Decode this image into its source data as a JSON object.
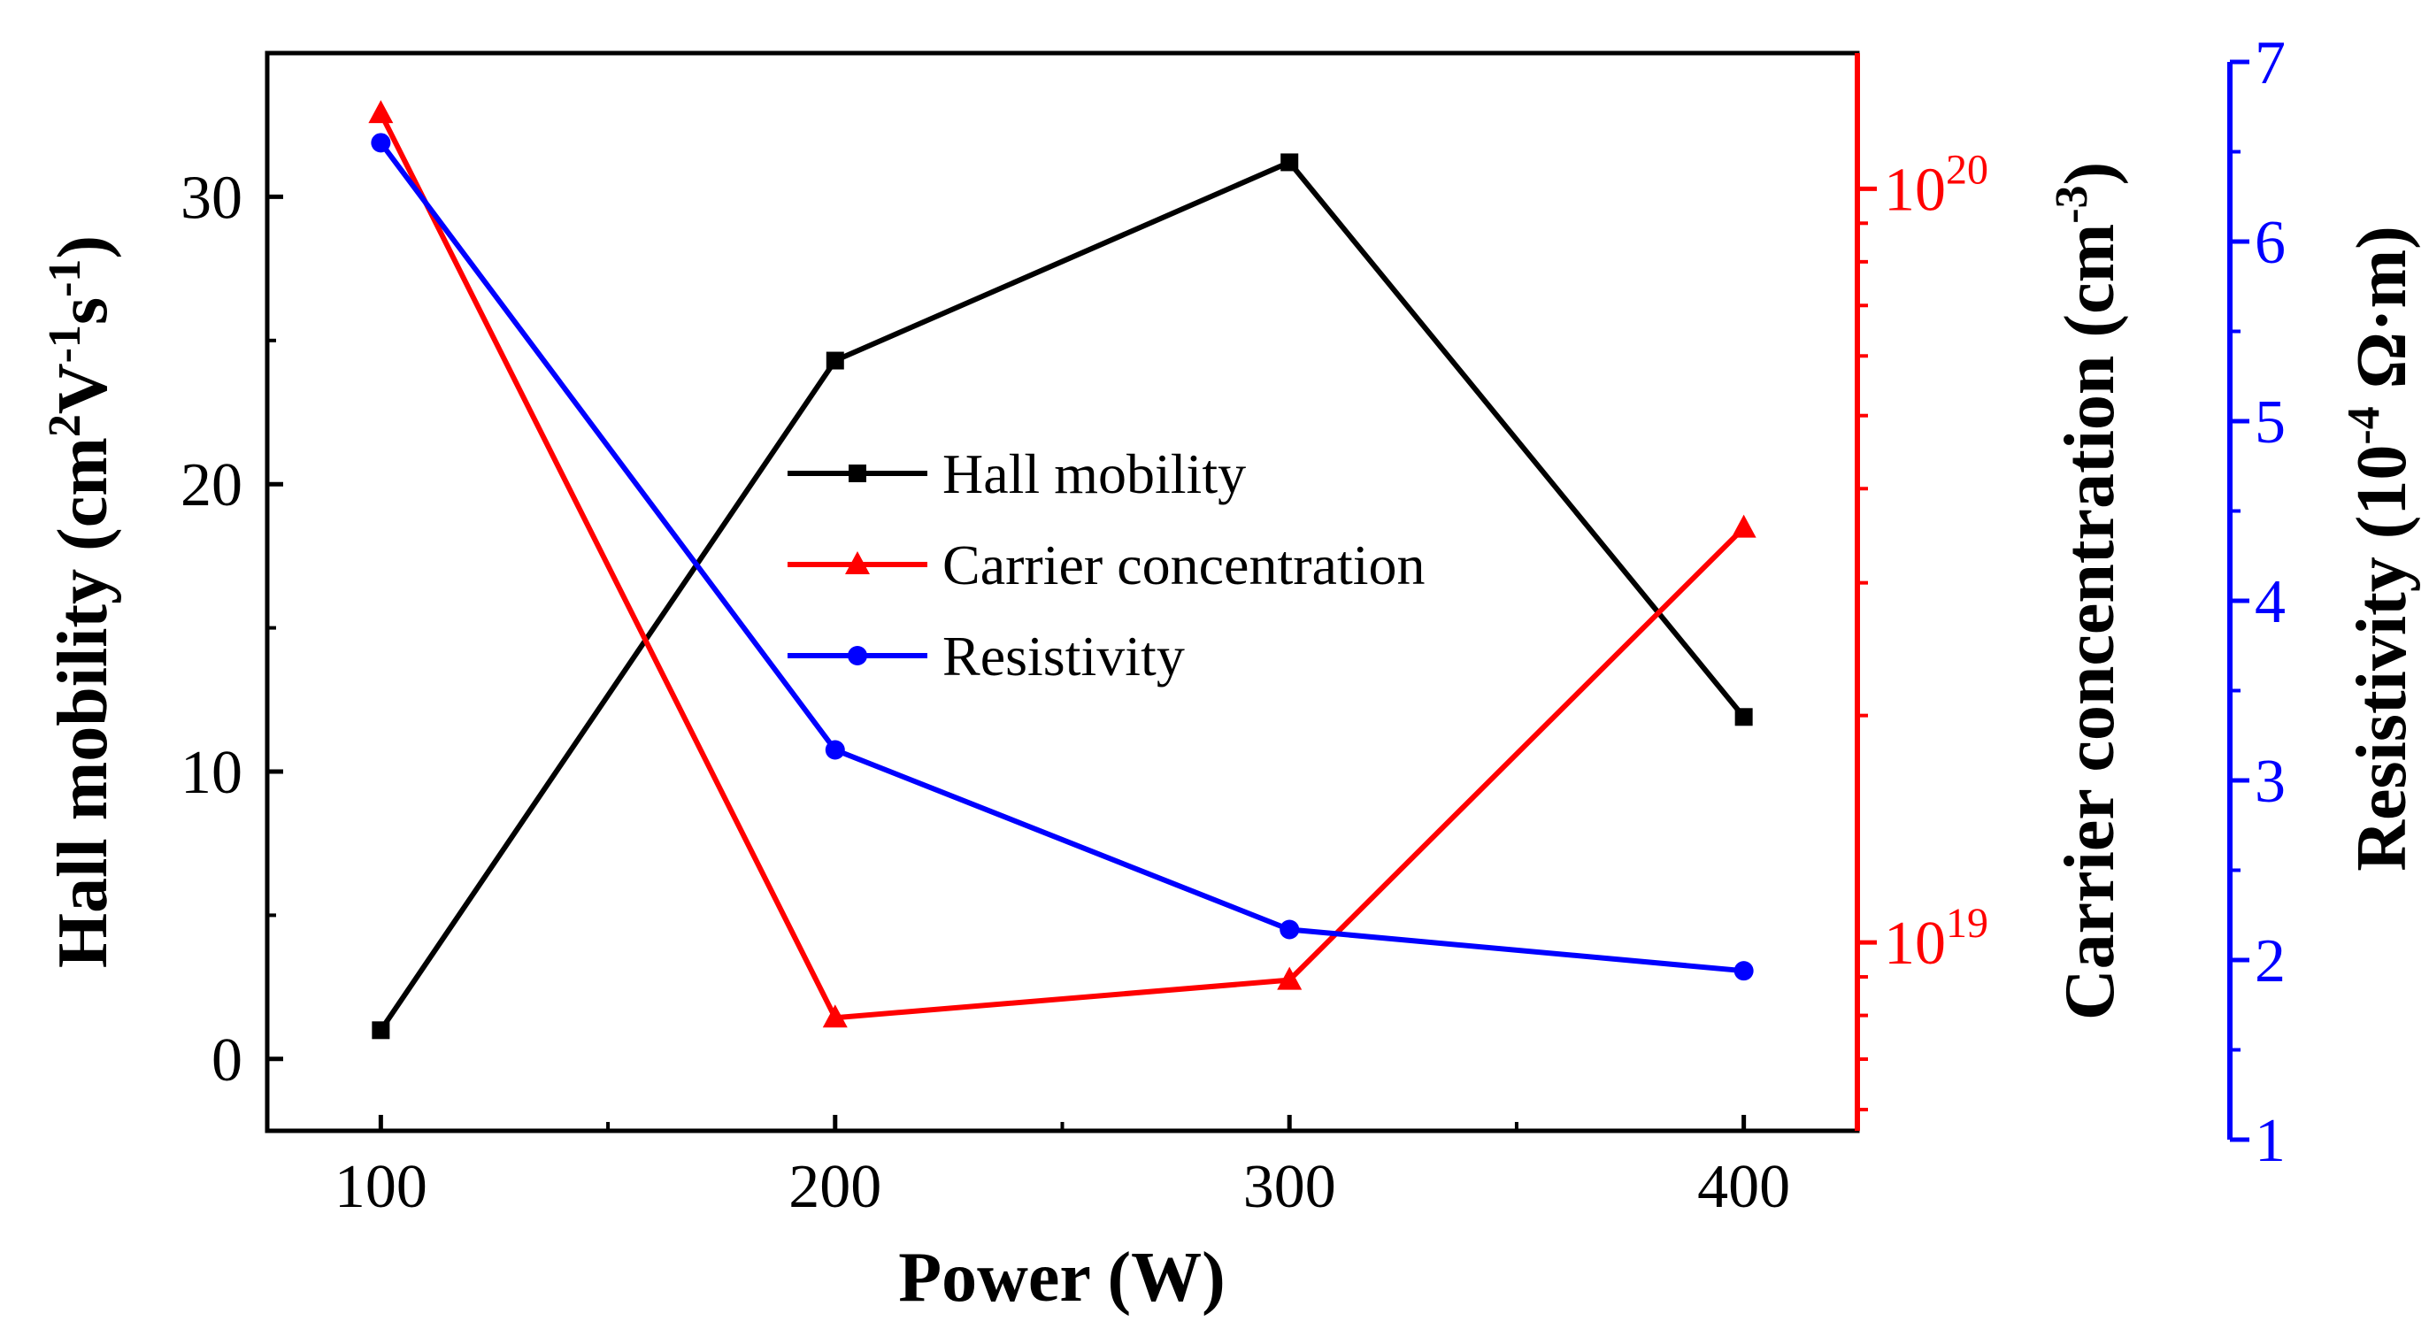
{
  "chart_data": {
    "type": "line",
    "xlabel": "Power (W)",
    "x": [
      100,
      200,
      300,
      400
    ],
    "x_ticks": [
      "100",
      "200",
      "300",
      "400"
    ],
    "xlim": [
      75,
      425
    ],
    "axes": {
      "left": {
        "label_main": "Hall mobility (cm",
        "label_sup1": "2",
        "label_mid1": "V",
        "label_sup2": "-1",
        "label_mid2": "s",
        "label_sup3": "-1",
        "label_end": ")",
        "ylim": [
          -2.5,
          35
        ],
        "ticks": [
          "0",
          "10",
          "20",
          "30"
        ],
        "color": "#000000"
      },
      "right1": {
        "label_main": "Carrier concentration (cm",
        "label_sup": "-3",
        "label_end": ")",
        "scale": "log",
        "ylim_log10": [
          18.75,
          20.18
        ],
        "tick_base": "10",
        "tick_exps": [
          "19",
          "20"
        ],
        "color": "#ff0000"
      },
      "right2": {
        "label_main": "Resistivity (10",
        "label_sup": "-4",
        "label_end": " Ω·m)",
        "ylim": [
          1,
          7
        ],
        "ticks": [
          "1",
          "2",
          "3",
          "4",
          "5",
          "6",
          "7"
        ],
        "color": "#0000ff"
      }
    },
    "series": [
      {
        "name": "Hall mobility",
        "axis": "left",
        "values": [
          1.0,
          24.3,
          31.2,
          11.9
        ],
        "color": "#000000",
        "marker": "square"
      },
      {
        "name": "Carrier concentration",
        "axis": "right1",
        "values_log10": [
          20.1,
          18.9,
          18.95,
          19.55
        ],
        "color": "#ff0000",
        "marker": "triangle"
      },
      {
        "name": "Resistivity",
        "axis": "right2",
        "values": [
          6.55,
          3.17,
          2.17,
          1.94
        ],
        "color": "#0000ff",
        "marker": "circle"
      }
    ],
    "legend_position": "center"
  }
}
